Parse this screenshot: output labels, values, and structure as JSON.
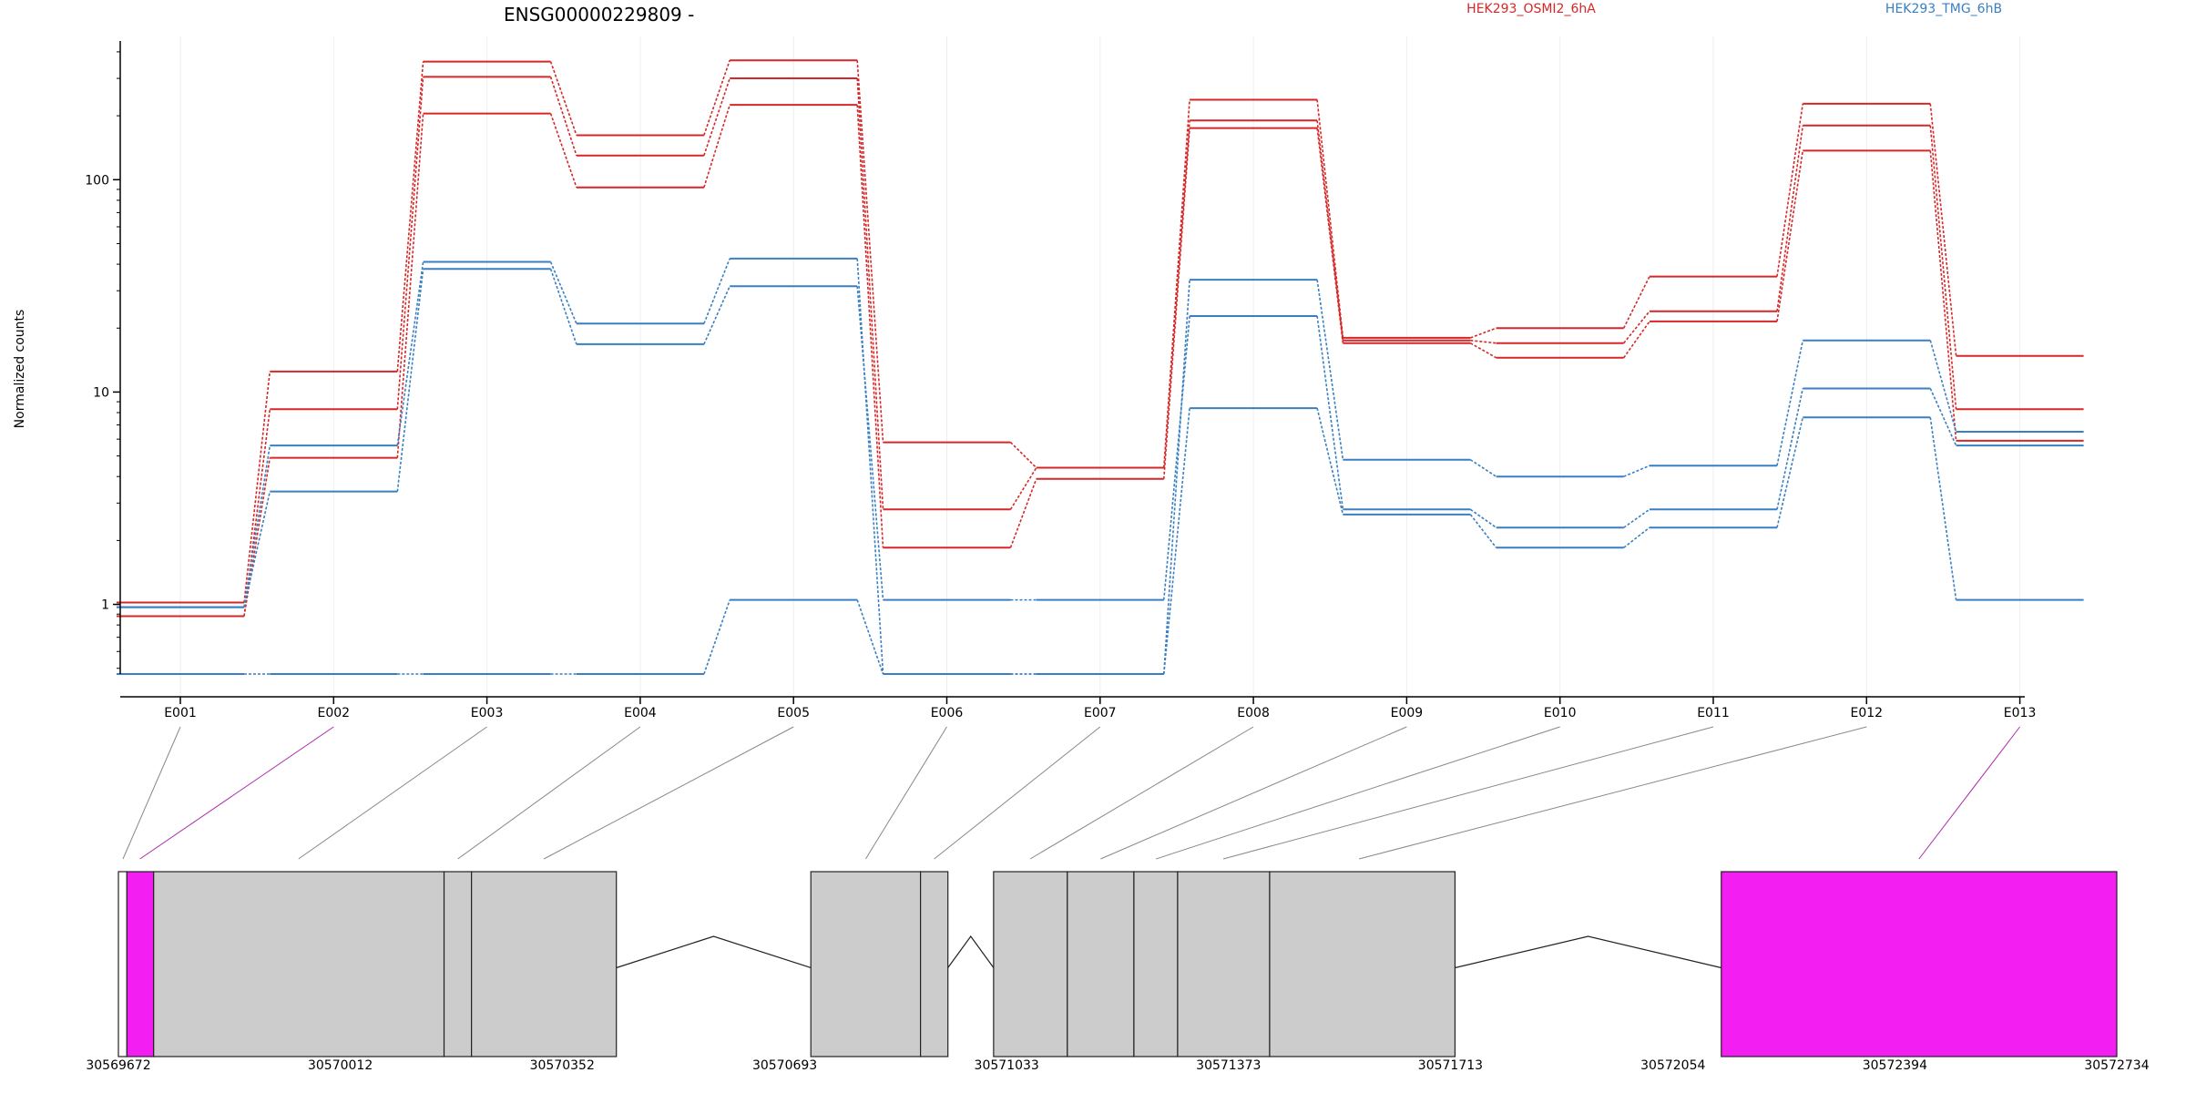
{
  "chart_data": {
    "type": "line",
    "title": "ENSG00000229809 -",
    "ylabel": "Normalized counts",
    "y_scale": "log",
    "ylim": [
      0.47,
      450
    ],
    "y_ticks": [
      1,
      10,
      100
    ],
    "y_tick_labels": [
      "1",
      "10",
      "100"
    ],
    "categories": [
      "E001",
      "E002",
      "E003",
      "E004",
      "E005",
      "E006",
      "E007",
      "E008",
      "E009",
      "E010",
      "E011",
      "E012",
      "E013"
    ],
    "conditions": [
      {
        "name": "HEK293_OSMI2_6hA",
        "color": "#d62728"
      },
      {
        "name": "HEK293_TMG_6hB",
        "color": "#3a7fc1"
      }
    ],
    "series": [
      {
        "condition": 0,
        "values": [
          1.02,
          12.5,
          360,
          162,
          365,
          5.8,
          4.4,
          238,
          18.0,
          20.0,
          35.0,
          228,
          14.8
        ]
      },
      {
        "condition": 0,
        "values": [
          0.88,
          8.3,
          305,
          130,
          300,
          2.8,
          4.4,
          190,
          17.5,
          17.0,
          24.0,
          180,
          8.3
        ]
      },
      {
        "condition": 0,
        "values": [
          0.88,
          4.9,
          205,
          92,
          225,
          1.85,
          3.9,
          175,
          17.0,
          14.5,
          21.5,
          137,
          5.9
        ]
      },
      {
        "condition": 1,
        "values": [
          0.97,
          5.6,
          41,
          21,
          42.5,
          0.47,
          0.47,
          33.8,
          4.8,
          4.0,
          4.5,
          17.5,
          6.5
        ]
      },
      {
        "condition": 1,
        "values": [
          0.97,
          3.4,
          38,
          16.8,
          31.5,
          1.05,
          1.05,
          22.8,
          2.8,
          2.3,
          2.8,
          10.4,
          5.6
        ]
      },
      {
        "condition": 1,
        "values": [
          0.47,
          0.47,
          0.47,
          0.47,
          1.05,
          0.47,
          0.47,
          8.4,
          2.65,
          1.85,
          2.3,
          7.6,
          1.05
        ]
      }
    ],
    "gene_model": {
      "coord_ticks": [
        "30569672",
        "30570012",
        "30570352",
        "30570693",
        "30571033",
        "30571373",
        "30571713",
        "30572054",
        "30572394",
        "30572734"
      ],
      "coord_range": [
        30569672,
        30572734
      ],
      "exons": [
        {
          "start": 30569672,
          "end": 30569685,
          "color": "#ffffff"
        },
        {
          "start": 30569685,
          "end": 30569726,
          "color": "#f21ef2"
        },
        {
          "start": 30569726,
          "end": 30570171,
          "color": "#cccccc"
        },
        {
          "start": 30570171,
          "end": 30570213,
          "color": "#cccccc"
        },
        {
          "start": 30570213,
          "end": 30570435,
          "color": "#cccccc"
        },
        {
          "start": 30570733,
          "end": 30570901,
          "color": "#cccccc"
        },
        {
          "start": 30570901,
          "end": 30570943,
          "color": "#cccccc"
        },
        {
          "start": 30571013,
          "end": 30571126,
          "color": "#cccccc"
        },
        {
          "start": 30571126,
          "end": 30571228,
          "color": "#cccccc"
        },
        {
          "start": 30571228,
          "end": 30571295,
          "color": "#cccccc"
        },
        {
          "start": 30571295,
          "end": 30571436,
          "color": "#cccccc"
        },
        {
          "start": 30571436,
          "end": 30571720,
          "color": "#cccccc"
        },
        {
          "start": 30572128,
          "end": 30572734,
          "color": "#f21ef2"
        }
      ],
      "introns": [
        {
          "start": 30570435,
          "end": 30570733
        },
        {
          "start": 30570943,
          "end": 30571013
        },
        {
          "start": 30571720,
          "end": 30572128
        }
      ],
      "connector_targets": [
        30569679,
        30569705,
        30569948,
        30570192,
        30570324,
        30570817,
        30570922,
        30571069,
        30571177,
        30571262,
        30571365,
        30571573,
        30572431
      ],
      "connector_colors": [
        "#888888",
        "#aa2aaa",
        "#888888",
        "#888888",
        "#888888",
        "#888888",
        "#888888",
        "#888888",
        "#888888",
        "#888888",
        "#888888",
        "#888888",
        "#aa2aaa"
      ]
    }
  }
}
